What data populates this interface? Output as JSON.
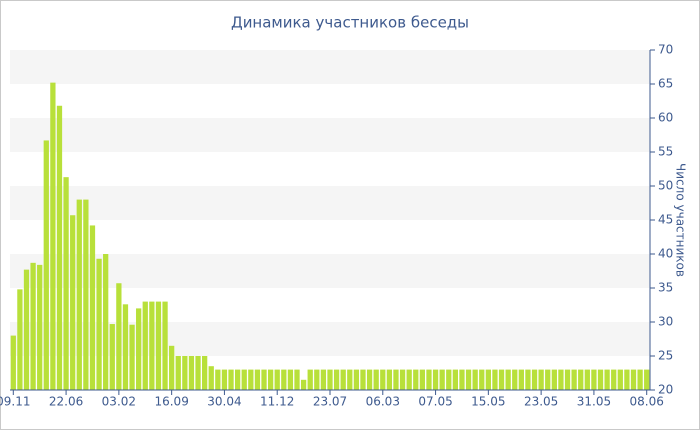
{
  "chart_data": {
    "type": "bar",
    "title": "Динамика участников беседы",
    "y_label": "Число участников",
    "categories": [
      "09.11",
      null,
      null,
      null,
      null,
      null,
      null,
      null,
      "22.06",
      null,
      null,
      null,
      null,
      null,
      null,
      null,
      "03.02",
      null,
      null,
      null,
      null,
      null,
      null,
      null,
      "16.09",
      null,
      null,
      null,
      null,
      null,
      null,
      null,
      "30.04",
      null,
      null,
      null,
      null,
      null,
      null,
      null,
      "11.12",
      null,
      null,
      null,
      null,
      null,
      null,
      null,
      "23.07",
      null,
      null,
      null,
      null,
      null,
      null,
      null,
      "06.03",
      null,
      null,
      null,
      null,
      null,
      null,
      null,
      "07.05",
      null,
      null,
      null,
      null,
      null,
      null,
      null,
      "15.05",
      null,
      null,
      null,
      null,
      null,
      null,
      null,
      "23.05",
      null,
      null,
      null,
      null,
      null,
      null,
      null,
      "31.05",
      null,
      null,
      null,
      null,
      null,
      null,
      null,
      "08.06"
    ],
    "values": [
      28,
      34.8,
      37.7,
      38.7,
      38.4,
      56.7,
      65.2,
      61.8,
      51.3,
      45.7,
      48,
      48,
      44.2,
      39.3,
      40,
      29.7,
      35.7,
      32.6,
      29.6,
      32,
      33,
      33,
      33,
      33,
      26.5,
      25,
      25,
      25,
      25,
      25,
      23.5,
      23,
      23,
      23,
      23,
      23,
      23,
      23,
      23,
      23,
      23,
      23,
      23,
      23,
      21.5,
      23,
      23,
      23,
      23,
      23,
      23,
      23,
      23,
      23,
      23,
      23,
      23,
      23,
      23,
      23,
      23,
      23,
      23,
      23,
      23,
      23,
      23,
      23,
      23,
      23,
      23,
      23,
      23,
      23,
      23,
      23,
      23,
      23,
      23,
      23,
      23,
      23,
      23,
      23,
      23,
      23,
      23,
      23,
      23,
      23,
      23,
      23,
      23,
      23,
      23,
      23,
      23
    ],
    "color": "#b8e03a",
    "ylim": [
      20,
      70
    ],
    "yticks": [
      20,
      25,
      30,
      35,
      40,
      45,
      50,
      55,
      60,
      65,
      70
    ],
    "grid": true,
    "y_axis_side": "right"
  }
}
